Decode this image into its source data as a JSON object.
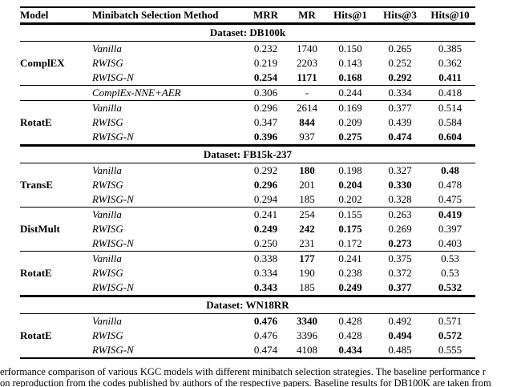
{
  "table": {
    "headers": [
      "Model",
      "Minibatch Selection Method",
      "MRR",
      "MR",
      "Hits@1",
      "Hits@3",
      "Hits@10"
    ],
    "sections": [
      {
        "dataset": "Dataset: DB100k",
        "groups": [
          {
            "model": "ComplEX",
            "rows": [
              {
                "method": "Vanilla",
                "values": [
                  "0.232",
                  "1740",
                  "0.150",
                  "0.265",
                  "0.385"
                ],
                "bold": [
                  0,
                  0,
                  0,
                  0,
                  0
                ],
                "method_bold": false
              },
              {
                "method": "RWISG",
                "values": [
                  "0.219",
                  "2203",
                  "0.143",
                  "0.252",
                  "0.362"
                ],
                "bold": [
                  0,
                  0,
                  0,
                  0,
                  0
                ],
                "method_bold": false
              },
              {
                "method": "RWISG-N",
                "values": [
                  "0.254",
                  "1171",
                  "0.168",
                  "0.292",
                  "0.411"
                ],
                "bold": [
                  1,
                  1,
                  1,
                  1,
                  1
                ],
                "method_bold": false
              }
            ]
          },
          {
            "model": "",
            "rows": [
              {
                "method": "ComplEx-NNE+AER",
                "values": [
                  "0.306",
                  "-",
                  "0.244",
                  "0.334",
                  "0.418"
                ],
                "bold": [
                  0,
                  0,
                  0,
                  0,
                  0
                ],
                "method_bold": false
              }
            ]
          },
          {
            "model": "RotatE",
            "rows": [
              {
                "method": "Vanilla",
                "values": [
                  "0.296",
                  "2614",
                  "0.169",
                  "0.377",
                  "0.514"
                ],
                "bold": [
                  0,
                  0,
                  0,
                  0,
                  0
                ],
                "method_bold": false
              },
              {
                "method": "RWISG",
                "values": [
                  "0.347",
                  "844",
                  "0.209",
                  "0.439",
                  "0.584"
                ],
                "bold": [
                  0,
                  1,
                  0,
                  0,
                  0
                ],
                "method_bold": false
              },
              {
                "method": "RWISG-N",
                "values": [
                  "0.396",
                  "937",
                  "0.275",
                  "0.474",
                  "0.604"
                ],
                "bold": [
                  1,
                  0,
                  1,
                  1,
                  1
                ],
                "method_bold": false
              }
            ]
          }
        ]
      },
      {
        "dataset": "Dataset: FB15k-237",
        "groups": [
          {
            "model": "TransE",
            "rows": [
              {
                "method": "Vanilla",
                "values": [
                  "0.292",
                  "180",
                  "0.198",
                  "0.327",
                  "0.48"
                ],
                "bold": [
                  0,
                  1,
                  0,
                  0,
                  1
                ],
                "method_bold": false
              },
              {
                "method": "RWISG",
                "values": [
                  "0.296",
                  "201",
                  "0.204",
                  "0.330",
                  "0.478"
                ],
                "bold": [
                  1,
                  0,
                  1,
                  1,
                  0
                ],
                "method_bold": false
              },
              {
                "method": "RWISG-N",
                "values": [
                  "0.294",
                  "185",
                  "0.202",
                  "0.328",
                  "0.475"
                ],
                "bold": [
                  0,
                  0,
                  0,
                  0,
                  0
                ],
                "method_bold": false
              }
            ]
          },
          {
            "model": "DistMult",
            "rows": [
              {
                "method": "Vanilla",
                "values": [
                  "0.241",
                  "254",
                  "0.155",
                  "0.263",
                  "0.419"
                ],
                "bold": [
                  0,
                  0,
                  0,
                  0,
                  1
                ],
                "method_bold": false
              },
              {
                "method": "RWISG",
                "values": [
                  "0.249",
                  "242",
                  "0.175",
                  "0.269",
                  "0.397"
                ],
                "bold": [
                  1,
                  1,
                  1,
                  0,
                  0
                ],
                "method_bold": false
              },
              {
                "method": "RWISG-N",
                "values": [
                  "0.250",
                  "231",
                  "0.172",
                  "0.273",
                  "0.403"
                ],
                "bold": [
                  0,
                  0,
                  0,
                  1,
                  0
                ],
                "method_bold": false
              }
            ]
          },
          {
            "model": "RotatE",
            "rows": [
              {
                "method": "Vanilla",
                "values": [
                  "0.338",
                  "177",
                  "0.241",
                  "0.375",
                  "0.53"
                ],
                "bold": [
                  0,
                  1,
                  0,
                  0,
                  0
                ],
                "method_bold": false
              },
              {
                "method": "RWISG",
                "values": [
                  "0.334",
                  "190",
                  "0.238",
                  "0.372",
                  "0.53"
                ],
                "bold": [
                  0,
                  0,
                  0,
                  0,
                  0
                ],
                "method_bold": false
              },
              {
                "method": "RWISG-N",
                "values": [
                  "0.343",
                  "185",
                  "0.249",
                  "0.377",
                  "0.532"
                ],
                "bold": [
                  1,
                  0,
                  1,
                  1,
                  1
                ],
                "method_bold": false
              }
            ]
          }
        ]
      },
      {
        "dataset": "Dataset: WN18RR",
        "groups": [
          {
            "model": "RotatE",
            "rows": [
              {
                "method": "Vanilla",
                "values": [
                  "0.476",
                  "3340",
                  "0.428",
                  "0.492",
                  "0.571"
                ],
                "bold": [
                  1,
                  1,
                  0,
                  0,
                  0
                ],
                "method_bold": false
              },
              {
                "method": "RWISG",
                "values": [
                  "0.476",
                  "3396",
                  "0.428",
                  "0.494",
                  "0.572"
                ],
                "bold": [
                  0,
                  0,
                  0,
                  1,
                  1
                ],
                "method_bold": false
              },
              {
                "method": "RWISG-N",
                "values": [
                  "0.474",
                  "4108",
                  "0.434",
                  "0.485",
                  "0.555"
                ],
                "bold": [
                  0,
                  0,
                  1,
                  0,
                  0
                ],
                "method_bold": false
              }
            ]
          }
        ]
      }
    ]
  },
  "caption": {
    "line1": "Performance comparison of various KGC models with different minibatch selection strategies. The baseline performance r",
    "line2": "on reproduction from the codes published by authors of the respective papers. Baseline results for DB100K are taken from"
  }
}
